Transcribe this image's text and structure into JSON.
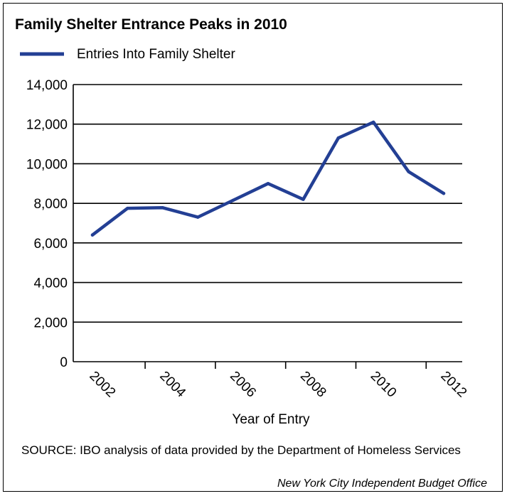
{
  "chart_data": {
    "type": "line",
    "title": "Family Shelter Entrance Peaks in 2010",
    "xlabel": "Year of Entry",
    "ylabel": "",
    "ylim": [
      0,
      14000
    ],
    "yticks": [
      0,
      2000,
      4000,
      6000,
      8000,
      10000,
      12000,
      14000
    ],
    "ytick_labels": [
      "0",
      "2,000",
      "4,000",
      "6,000",
      "8,000",
      "10,000",
      "12,000",
      "14,000"
    ],
    "xticks": [
      2002,
      2004,
      2006,
      2008,
      2010,
      2012
    ],
    "xtick_labels": [
      "2002",
      "2004",
      "2006",
      "2008",
      "2010",
      "2012"
    ],
    "grid": "horizontal",
    "legend_position": "top-left",
    "series": [
      {
        "name": "Entries Into Family Shelter",
        "color": "#233f94",
        "x": [
          2002,
          2003,
          2004,
          2005,
          2006,
          2007,
          2008,
          2009,
          2010,
          2011,
          2012
        ],
        "values": [
          6400,
          7750,
          7780,
          7300,
          8150,
          9000,
          8200,
          11300,
          12100,
          9600,
          8500
        ]
      }
    ]
  },
  "source": "SOURCE: IBO analysis of data provided by the Department of Homeless Services",
  "credit": "New York City Independent Budget Office"
}
